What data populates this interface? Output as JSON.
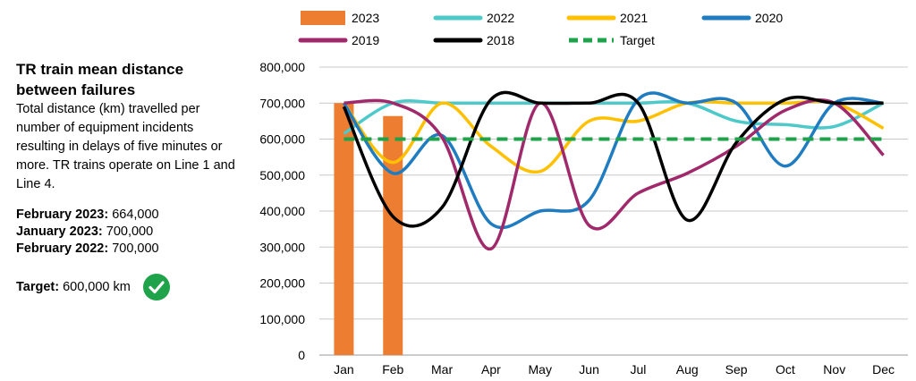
{
  "panel": {
    "title": "TR train mean distance between failures",
    "description": "Total distance (km) travelled per number of equipment incidents resulting in delays of five minutes or more. TR trains operate on Line 1 and Line 4.",
    "stats": [
      {
        "label": "February 2023:",
        "value": "664,000"
      },
      {
        "label": "January 2023:",
        "value": "700,000"
      },
      {
        "label": "February 2022:",
        "value": "700,000"
      }
    ],
    "target_label": "Target:",
    "target_value": "600,000 km",
    "target_icon": "check-circle-icon",
    "target_icon_color": "#1fa34a"
  },
  "chart_data": {
    "type": "line",
    "categories": [
      "Jan",
      "Feb",
      "Mar",
      "Apr",
      "May",
      "Jun",
      "Jul",
      "Aug",
      "Sep",
      "Oct",
      "Nov",
      "Dec"
    ],
    "ylim": [
      0,
      800000
    ],
    "yticks": [
      0,
      100000,
      200000,
      300000,
      400000,
      500000,
      600000,
      700000,
      800000
    ],
    "ytick_labels": [
      "0",
      "100,000",
      "200,000",
      "300,000",
      "400,000",
      "500,000",
      "600,000",
      "700,000",
      "800,000"
    ],
    "grid": true,
    "legend_position": "top",
    "bars": {
      "name": "2023",
      "color": "#ed7d31",
      "values": [
        700000,
        664000
      ]
    },
    "series": [
      {
        "name": "2022",
        "color": "#4dc9c9",
        "values": [
          615000,
          700000,
          700000,
          700000,
          700000,
          700000,
          700000,
          700000,
          650000,
          640000,
          635000,
          700000
        ]
      },
      {
        "name": "2021",
        "color": "#ffc000",
        "values": [
          700000,
          535000,
          700000,
          580000,
          510000,
          650000,
          650000,
          700000,
          700000,
          700000,
          700000,
          630000
        ]
      },
      {
        "name": "2020",
        "color": "#1f7cc0",
        "values": [
          700000,
          505000,
          610000,
          365000,
          400000,
          430000,
          710000,
          700000,
          700000,
          525000,
          700000,
          700000
        ]
      },
      {
        "name": "2019",
        "color": "#a0296b",
        "values": [
          700000,
          700000,
          605000,
          295000,
          700000,
          360000,
          450000,
          505000,
          580000,
          680000,
          700000,
          555000
        ]
      },
      {
        "name": "2018",
        "color": "#000000",
        "values": [
          690000,
          385000,
          410000,
          710000,
          700000,
          700000,
          700000,
          375000,
          590000,
          710000,
          700000,
          700000
        ]
      }
    ],
    "target": {
      "name": "Target",
      "color": "#1fa34a",
      "value": 600000
    }
  }
}
